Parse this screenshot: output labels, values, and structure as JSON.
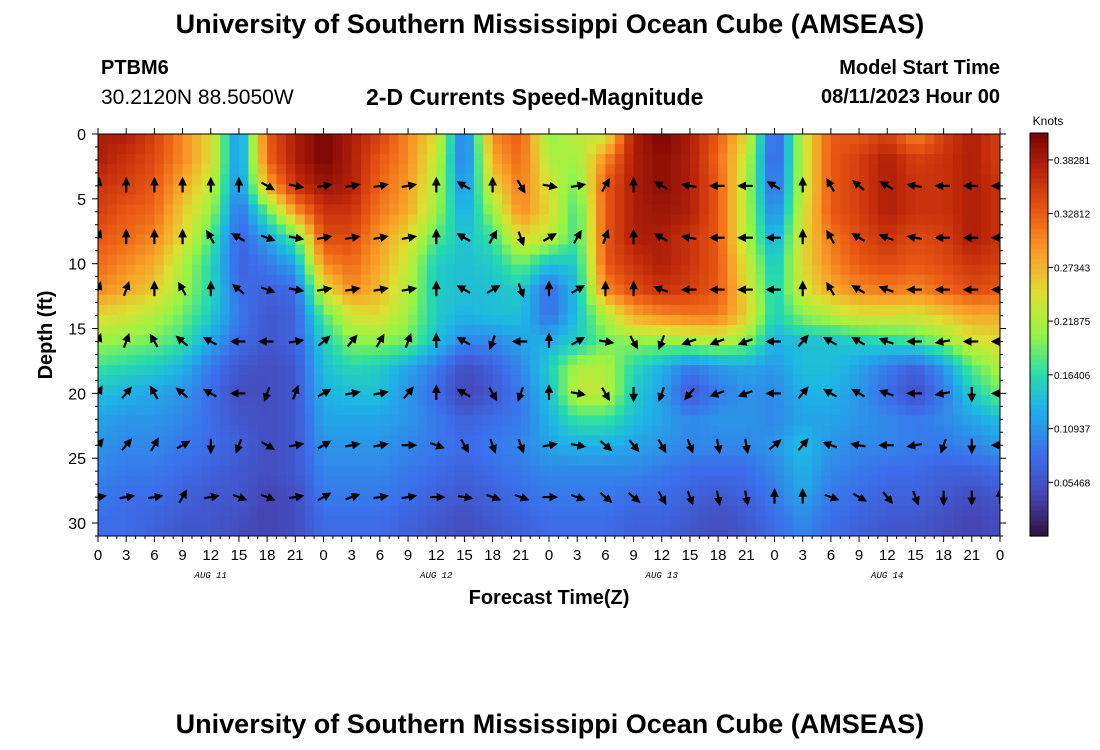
{
  "header": {
    "title": "University of Southern Mississippi Ocean Cube (AMSEAS)",
    "station": "PTBM6",
    "coords": "30.2120N  88.5050W",
    "plot_title": "2-D Currents Speed-Magnitude",
    "start_label": "Model Start Time",
    "start_value": "08/11/2023 Hour 00"
  },
  "footer": {
    "title": "University of Southern Mississippi Ocean Cube (AMSEAS)"
  },
  "colors": {
    "background": "#ffffff",
    "text": "#000000",
    "arrow": "#000000"
  },
  "chart_data": {
    "type": "heatmap",
    "title": "2-D Currents Speed-Magnitude",
    "xlabel": "Forecast Time(Z)",
    "ylabel": "Depth (ft)",
    "x_ticks": [
      "0",
      "3",
      "6",
      "9",
      "12",
      "15",
      "18",
      "21",
      "0",
      "3",
      "6",
      "9",
      "12",
      "15",
      "18",
      "21",
      "0",
      "3",
      "6",
      "9",
      "12",
      "15",
      "18",
      "21",
      "0",
      "3",
      "6",
      "9",
      "12",
      "15",
      "18",
      "21",
      "0"
    ],
    "x_hours": [
      0,
      3,
      6,
      9,
      12,
      15,
      18,
      21,
      24,
      27,
      30,
      33,
      36,
      39,
      42,
      45,
      48,
      51,
      54,
      57,
      60,
      63,
      66,
      69,
      72,
      75,
      78,
      81,
      84,
      87,
      90,
      93,
      96
    ],
    "xlim": [
      0,
      96
    ],
    "date_labels": [
      {
        "label": "AUG 11",
        "hour": 12
      },
      {
        "label": "AUG 12",
        "hour": 36
      },
      {
        "label": "AUG 13",
        "hour": 60
      },
      {
        "label": "AUG 14",
        "hour": 84
      }
    ],
    "y_ticks": [
      "0",
      "5",
      "10",
      "15",
      "20",
      "25",
      "30"
    ],
    "y_values": [
      0,
      5,
      10,
      15,
      20,
      25,
      30
    ],
    "ylim": [
      31,
      0
    ],
    "colorbar": {
      "label": "Knots",
      "min": 0,
      "max": 0.4102,
      "ticks": [
        "0.05468",
        "0.10937",
        "0.16406",
        "0.21875",
        "0.27343",
        "0.32812",
        "0.38281"
      ],
      "tick_values": [
        0.05468,
        0.10937,
        0.16406,
        0.21875,
        0.27343,
        0.32812,
        0.38281
      ]
    },
    "speed_depths_ft": [
      0,
      2,
      4,
      6,
      8,
      10,
      12,
      14,
      16,
      18,
      20,
      22,
      24,
      26,
      28,
      30
    ],
    "speed_hours": [
      0,
      3,
      6,
      9,
      12,
      15,
      18,
      21,
      24,
      27,
      30,
      33,
      36,
      39,
      42,
      45,
      48,
      51,
      54,
      57,
      60,
      63,
      66,
      69,
      72,
      75,
      78,
      81,
      84,
      87,
      90,
      93,
      96
    ],
    "speed_knots": [
      [
        0.38,
        0.38,
        0.35,
        0.3,
        0.25,
        0.1,
        0.33,
        0.38,
        0.41,
        0.38,
        0.35,
        0.3,
        0.25,
        0.08,
        0.3,
        0.33,
        0.2,
        0.23,
        0.23,
        0.38,
        0.41,
        0.38,
        0.33,
        0.25,
        0.06,
        0.23,
        0.33,
        0.33,
        0.35,
        0.3,
        0.35,
        0.38,
        0.35
      ],
      [
        0.38,
        0.36,
        0.34,
        0.3,
        0.25,
        0.1,
        0.32,
        0.38,
        0.41,
        0.38,
        0.33,
        0.3,
        0.23,
        0.08,
        0.28,
        0.32,
        0.22,
        0.21,
        0.3,
        0.38,
        0.4,
        0.38,
        0.32,
        0.23,
        0.06,
        0.23,
        0.33,
        0.35,
        0.38,
        0.35,
        0.36,
        0.38,
        0.35
      ],
      [
        0.36,
        0.35,
        0.33,
        0.28,
        0.23,
        0.1,
        0.28,
        0.36,
        0.39,
        0.38,
        0.32,
        0.29,
        0.22,
        0.1,
        0.25,
        0.31,
        0.24,
        0.19,
        0.33,
        0.38,
        0.4,
        0.38,
        0.33,
        0.22,
        0.07,
        0.23,
        0.33,
        0.35,
        0.38,
        0.36,
        0.36,
        0.38,
        0.36
      ],
      [
        0.35,
        0.33,
        0.32,
        0.26,
        0.21,
        0.08,
        0.18,
        0.29,
        0.36,
        0.36,
        0.31,
        0.28,
        0.21,
        0.12,
        0.21,
        0.3,
        0.25,
        0.17,
        0.33,
        0.38,
        0.39,
        0.38,
        0.33,
        0.22,
        0.09,
        0.24,
        0.33,
        0.35,
        0.38,
        0.36,
        0.36,
        0.38,
        0.36
      ],
      [
        0.33,
        0.32,
        0.3,
        0.25,
        0.18,
        0.07,
        0.12,
        0.18,
        0.34,
        0.34,
        0.29,
        0.25,
        0.18,
        0.14,
        0.17,
        0.25,
        0.23,
        0.17,
        0.33,
        0.38,
        0.38,
        0.36,
        0.33,
        0.22,
        0.12,
        0.25,
        0.31,
        0.34,
        0.36,
        0.34,
        0.35,
        0.38,
        0.36
      ],
      [
        0.32,
        0.3,
        0.28,
        0.22,
        0.16,
        0.07,
        0.09,
        0.12,
        0.3,
        0.32,
        0.28,
        0.23,
        0.15,
        0.14,
        0.15,
        0.19,
        0.14,
        0.15,
        0.33,
        0.36,
        0.38,
        0.36,
        0.33,
        0.24,
        0.14,
        0.25,
        0.3,
        0.33,
        0.34,
        0.33,
        0.34,
        0.36,
        0.35
      ],
      [
        0.3,
        0.28,
        0.26,
        0.21,
        0.16,
        0.08,
        0.07,
        0.08,
        0.24,
        0.3,
        0.27,
        0.22,
        0.15,
        0.14,
        0.14,
        0.15,
        0.08,
        0.14,
        0.3,
        0.34,
        0.36,
        0.35,
        0.33,
        0.25,
        0.15,
        0.24,
        0.28,
        0.3,
        0.31,
        0.3,
        0.32,
        0.34,
        0.33
      ],
      [
        0.25,
        0.24,
        0.22,
        0.19,
        0.15,
        0.09,
        0.06,
        0.07,
        0.18,
        0.24,
        0.25,
        0.21,
        0.15,
        0.13,
        0.14,
        0.14,
        0.08,
        0.14,
        0.22,
        0.28,
        0.3,
        0.31,
        0.31,
        0.26,
        0.15,
        0.2,
        0.22,
        0.24,
        0.24,
        0.24,
        0.26,
        0.28,
        0.28
      ],
      [
        0.21,
        0.2,
        0.19,
        0.17,
        0.12,
        0.08,
        0.06,
        0.07,
        0.15,
        0.2,
        0.2,
        0.19,
        0.14,
        0.1,
        0.1,
        0.12,
        0.13,
        0.15,
        0.19,
        0.2,
        0.2,
        0.21,
        0.22,
        0.2,
        0.13,
        0.14,
        0.14,
        0.15,
        0.16,
        0.17,
        0.2,
        0.24,
        0.25
      ],
      [
        0.17,
        0.16,
        0.15,
        0.13,
        0.09,
        0.06,
        0.05,
        0.06,
        0.14,
        0.16,
        0.15,
        0.12,
        0.09,
        0.05,
        0.07,
        0.1,
        0.15,
        0.22,
        0.22,
        0.16,
        0.13,
        0.09,
        0.11,
        0.12,
        0.11,
        0.14,
        0.14,
        0.12,
        0.09,
        0.07,
        0.11,
        0.18,
        0.22
      ],
      [
        0.14,
        0.13,
        0.12,
        0.11,
        0.08,
        0.05,
        0.05,
        0.06,
        0.13,
        0.14,
        0.14,
        0.11,
        0.08,
        0.04,
        0.06,
        0.09,
        0.14,
        0.23,
        0.23,
        0.15,
        0.12,
        0.06,
        0.09,
        0.11,
        0.1,
        0.13,
        0.13,
        0.11,
        0.08,
        0.05,
        0.09,
        0.15,
        0.19
      ],
      [
        0.12,
        0.11,
        0.11,
        0.1,
        0.08,
        0.06,
        0.05,
        0.06,
        0.12,
        0.12,
        0.12,
        0.11,
        0.09,
        0.07,
        0.08,
        0.09,
        0.13,
        0.17,
        0.17,
        0.14,
        0.12,
        0.1,
        0.11,
        0.11,
        0.1,
        0.12,
        0.12,
        0.11,
        0.1,
        0.09,
        0.1,
        0.12,
        0.14
      ],
      [
        0.11,
        0.1,
        0.1,
        0.09,
        0.08,
        0.07,
        0.05,
        0.06,
        0.11,
        0.11,
        0.11,
        0.1,
        0.09,
        0.08,
        0.09,
        0.1,
        0.12,
        0.13,
        0.13,
        0.12,
        0.11,
        0.1,
        0.1,
        0.1,
        0.11,
        0.14,
        0.11,
        0.1,
        0.1,
        0.09,
        0.09,
        0.1,
        0.11
      ],
      [
        0.1,
        0.09,
        0.09,
        0.08,
        0.07,
        0.06,
        0.05,
        0.06,
        0.1,
        0.1,
        0.1,
        0.09,
        0.08,
        0.07,
        0.08,
        0.09,
        0.1,
        0.1,
        0.1,
        0.1,
        0.09,
        0.08,
        0.08,
        0.08,
        0.1,
        0.13,
        0.1,
        0.09,
        0.08,
        0.08,
        0.07,
        0.07,
        0.08
      ],
      [
        0.09,
        0.08,
        0.08,
        0.07,
        0.06,
        0.06,
        0.04,
        0.05,
        0.09,
        0.09,
        0.09,
        0.08,
        0.07,
        0.06,
        0.07,
        0.08,
        0.09,
        0.09,
        0.09,
        0.08,
        0.08,
        0.07,
        0.06,
        0.07,
        0.09,
        0.12,
        0.09,
        0.08,
        0.07,
        0.07,
        0.06,
        0.05,
        0.06
      ],
      [
        0.08,
        0.08,
        0.07,
        0.06,
        0.06,
        0.05,
        0.04,
        0.05,
        0.08,
        0.08,
        0.08,
        0.07,
        0.06,
        0.05,
        0.06,
        0.07,
        0.08,
        0.08,
        0.08,
        0.07,
        0.07,
        0.06,
        0.05,
        0.06,
        0.08,
        0.1,
        0.08,
        0.07,
        0.06,
        0.06,
        0.05,
        0.04,
        0.05
      ]
    ],
    "vector_depths_ft": [
      4,
      8,
      12,
      16,
      20,
      24,
      28
    ],
    "vector_hours": [
      0,
      3,
      6,
      9,
      12,
      15,
      18,
      21,
      24,
      27,
      30,
      33,
      36,
      39,
      42,
      45,
      48,
      51,
      54,
      57,
      60,
      63,
      66,
      69,
      72,
      75,
      78,
      81,
      84,
      87,
      90,
      93,
      96
    ],
    "vector_direction_deg": [
      [
        10,
        0,
        0,
        0,
        0,
        0,
        120,
        100,
        80,
        80,
        80,
        80,
        0,
        300,
        0,
        150,
        100,
        80,
        30,
        0,
        300,
        280,
        270,
        270,
        300,
        0,
        330,
        310,
        300,
        280,
        270,
        270,
        270
      ],
      [
        20,
        0,
        0,
        0,
        330,
        300,
        110,
        100,
        80,
        80,
        80,
        80,
        0,
        300,
        30,
        160,
        60,
        30,
        20,
        0,
        300,
        280,
        270,
        270,
        270,
        0,
        330,
        300,
        290,
        280,
        270,
        270,
        270
      ],
      [
        20,
        20,
        0,
        330,
        0,
        310,
        110,
        100,
        80,
        80,
        80,
        80,
        0,
        300,
        60,
        160,
        0,
        60,
        0,
        0,
        290,
        270,
        270,
        270,
        270,
        0,
        330,
        300,
        290,
        270,
        270,
        270,
        270
      ],
      [
        20,
        20,
        330,
        310,
        300,
        270,
        270,
        80,
        50,
        40,
        30,
        20,
        0,
        300,
        200,
        270,
        0,
        60,
        100,
        150,
        200,
        250,
        250,
        250,
        270,
        40,
        300,
        300,
        290,
        270,
        260,
        270,
        270
      ],
      [
        30,
        40,
        330,
        310,
        300,
        270,
        200,
        20,
        60,
        80,
        80,
        40,
        0,
        300,
        150,
        200,
        0,
        100,
        150,
        180,
        200,
        220,
        250,
        250,
        270,
        40,
        300,
        300,
        290,
        270,
        260,
        180,
        270
      ],
      [
        40,
        40,
        30,
        60,
        180,
        200,
        120,
        80,
        60,
        80,
        80,
        90,
        110,
        150,
        160,
        160,
        80,
        100,
        130,
        140,
        150,
        160,
        170,
        170,
        50,
        40,
        290,
        280,
        270,
        260,
        200,
        180,
        270
      ],
      [
        80,
        80,
        80,
        30,
        80,
        110,
        110,
        80,
        60,
        70,
        80,
        80,
        90,
        100,
        110,
        110,
        90,
        110,
        130,
        130,
        150,
        160,
        170,
        170,
        0,
        0,
        110,
        120,
        140,
        160,
        180,
        180,
        0
      ]
    ]
  }
}
